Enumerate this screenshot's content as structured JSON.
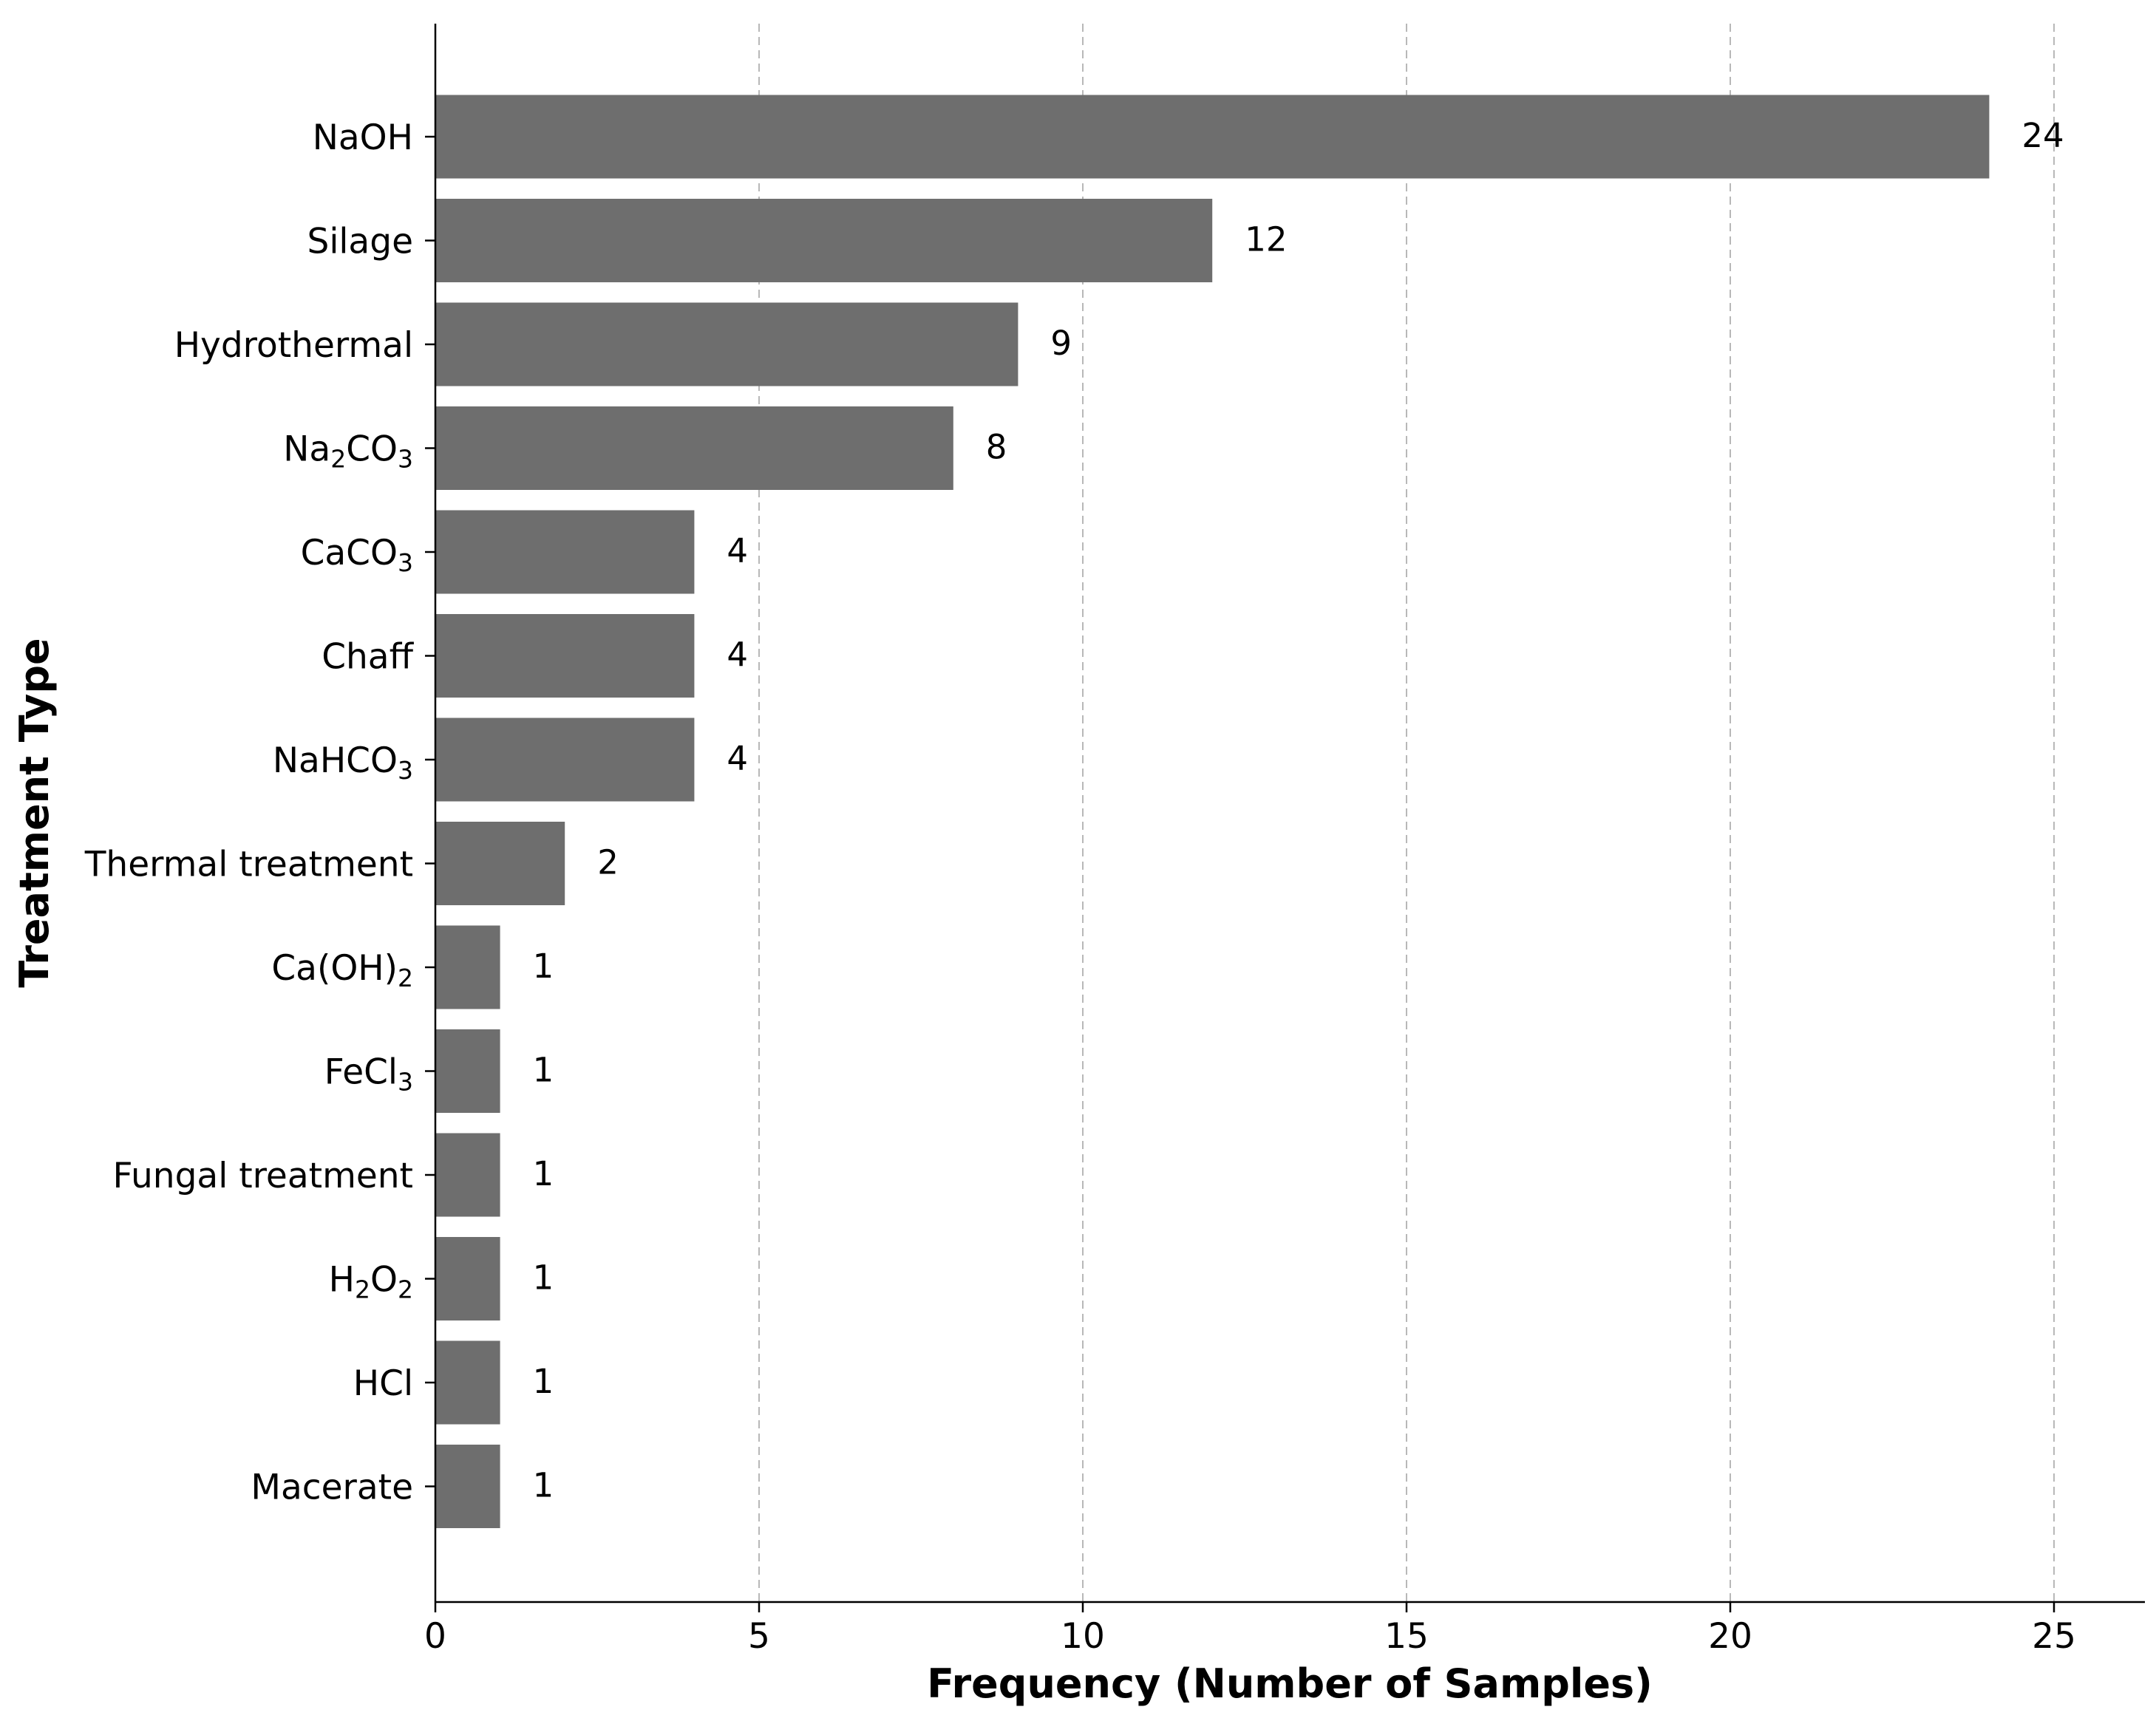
{
  "chart_data": {
    "type": "bar",
    "orientation": "horizontal",
    "title": "",
    "xlabel": "Frequency (Number of Samples)",
    "ylabel": "Treatment Type",
    "xlim": [
      0,
      26.4
    ],
    "xticks": [
      0,
      5,
      10,
      15,
      20,
      25
    ],
    "grid": "x-dashed",
    "categories": [
      {
        "base": "NaOH",
        "sub": ""
      },
      {
        "base": "Silage",
        "sub": ""
      },
      {
        "base": "Hydrothermal",
        "sub": ""
      },
      {
        "base": "Na",
        "sub": "2",
        "rest": "CO",
        "sub2": "3"
      },
      {
        "base": "CaCO",
        "sub": "3"
      },
      {
        "base": "Chaff",
        "sub": ""
      },
      {
        "base": "NaHCO",
        "sub": "3"
      },
      {
        "base": "Thermal treatment",
        "sub": ""
      },
      {
        "base": "Ca(OH)",
        "sub": "2"
      },
      {
        "base": "FeCl",
        "sub": "3"
      },
      {
        "base": "Fungal treatment",
        "sub": ""
      },
      {
        "base": "H",
        "sub": "2",
        "rest": "O",
        "sub2": "2"
      },
      {
        "base": "HCl",
        "sub": ""
      },
      {
        "base": "Macerate",
        "sub": ""
      }
    ],
    "values": [
      24,
      12,
      9,
      8,
      4,
      4,
      4,
      2,
      1,
      1,
      1,
      1,
      1,
      1
    ],
    "colors": {
      "bar": "#6e6e6e",
      "grid": "#b8b8b8",
      "axis": "#000000"
    }
  }
}
